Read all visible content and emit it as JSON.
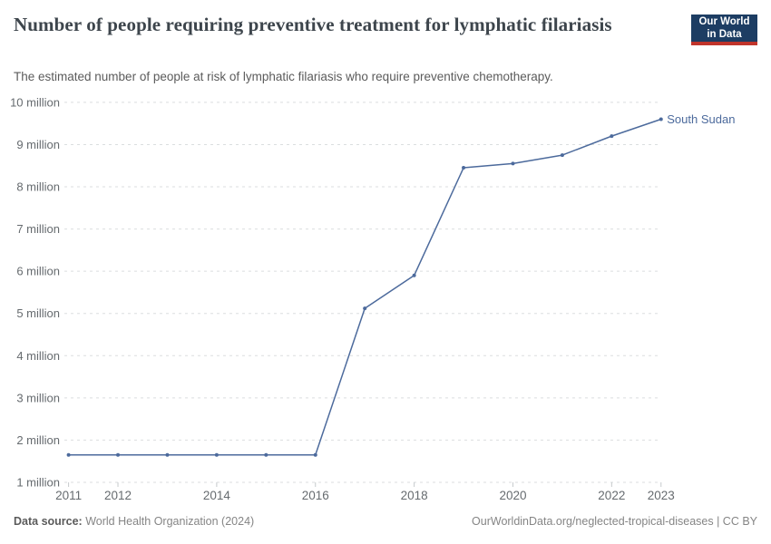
{
  "header": {
    "title": "Number of people requiring preventive treatment for lymphatic filariasis",
    "logo_line1": "Our World",
    "logo_line2": "in Data"
  },
  "subtitle": "The estimated number of people at risk of lymphatic filariasis who require preventive chemotherapy.",
  "footer": {
    "source_label": "Data source:",
    "source_value": " World Health Organization (2024)",
    "attribution": "OurWorldinData.org/neglected-tropical-diseases | CC BY"
  },
  "colors": {
    "line": "#4c6a9c",
    "gridline": "#dbdedf",
    "tick": "#c6cacc",
    "axis_text": "#666b6f",
    "entity_label": "#4c6a9c",
    "logo_bg": "#1d3d63",
    "logo_accent": "#c0342b"
  },
  "chart_data": {
    "type": "line",
    "title": "Number of people requiring preventive treatment for lymphatic filariasis",
    "xlabel": "",
    "ylabel": "",
    "xlim": [
      2011,
      2023
    ],
    "ylim": [
      1000000,
      10000000
    ],
    "grid": "horizontal-dashed",
    "legend_position": "end-of-line-label",
    "x": [
      2011,
      2012,
      2013,
      2014,
      2015,
      2016,
      2017,
      2018,
      2019,
      2020,
      2021,
      2022,
      2023
    ],
    "series": [
      {
        "name": "South Sudan",
        "values": [
          1650000,
          1650000,
          1650000,
          1650000,
          1650000,
          1650000,
          5120000,
          5900000,
          8450000,
          8550000,
          8750000,
          9200000,
          9600000
        ]
      }
    ],
    "y_ticks": [
      {
        "value": 1000000,
        "label": "1 million"
      },
      {
        "value": 2000000,
        "label": "2 million"
      },
      {
        "value": 3000000,
        "label": "3 million"
      },
      {
        "value": 4000000,
        "label": "4 million"
      },
      {
        "value": 5000000,
        "label": "5 million"
      },
      {
        "value": 6000000,
        "label": "6 million"
      },
      {
        "value": 7000000,
        "label": "7 million"
      },
      {
        "value": 8000000,
        "label": "8 million"
      },
      {
        "value": 9000000,
        "label": "9 million"
      },
      {
        "value": 10000000,
        "label": "10 million"
      }
    ],
    "x_ticks": [
      {
        "value": 2011,
        "label": "2011"
      },
      {
        "value": 2012,
        "label": "2012"
      },
      {
        "value": 2014,
        "label": "2014"
      },
      {
        "value": 2016,
        "label": "2016"
      },
      {
        "value": 2018,
        "label": "2018"
      },
      {
        "value": 2020,
        "label": "2020"
      },
      {
        "value": 2022,
        "label": "2022"
      },
      {
        "value": 2023,
        "label": "2023"
      }
    ]
  }
}
